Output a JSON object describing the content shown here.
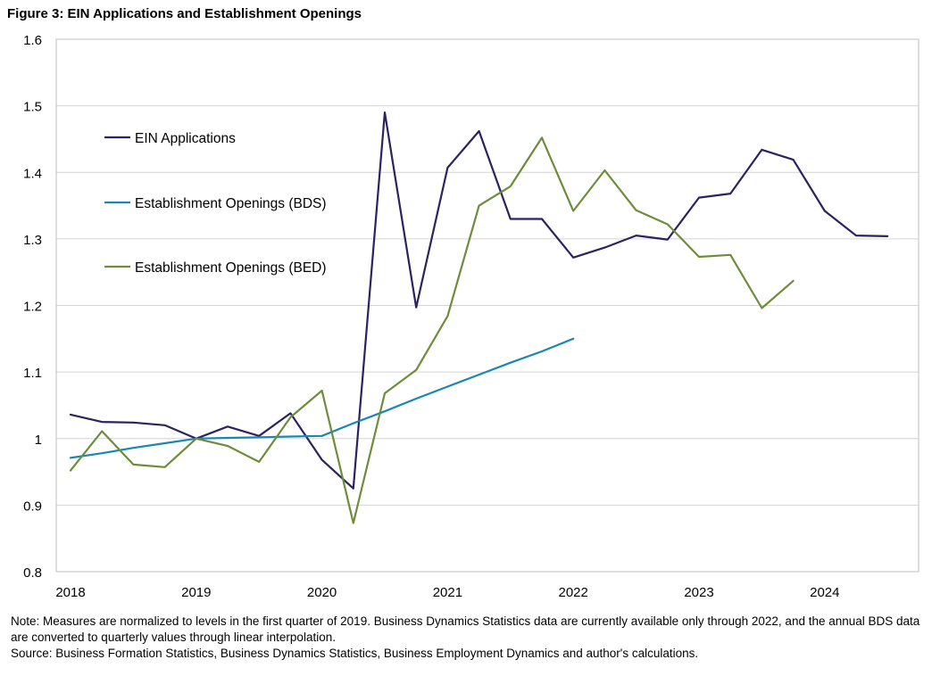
{
  "chart_data": {
    "type": "line",
    "title": "Figure 3: EIN Applications and Establishment Openings",
    "xlabel": "",
    "ylabel": "",
    "ylim": [
      0.8,
      1.6
    ],
    "yticks": [
      "0.8",
      "0.9",
      "1",
      "1.1",
      "1.2",
      "1.3",
      "1.4",
      "1.5",
      "1.6"
    ],
    "ytick_values": [
      0.8,
      0.9,
      1.0,
      1.1,
      1.2,
      1.3,
      1.4,
      1.5,
      1.6
    ],
    "x": [
      "2018Q1",
      "2018Q2",
      "2018Q3",
      "2018Q4",
      "2019Q1",
      "2019Q2",
      "2019Q3",
      "2019Q4",
      "2020Q1",
      "2020Q2",
      "2020Q3",
      "2020Q4",
      "2021Q1",
      "2021Q2",
      "2021Q3",
      "2021Q4",
      "2022Q1",
      "2022Q2",
      "2022Q3",
      "2022Q4",
      "2023Q1",
      "2023Q2",
      "2023Q3",
      "2023Q4",
      "2024Q1",
      "2024Q2",
      "2024Q3"
    ],
    "xtick_labels": [
      "2018",
      "2019",
      "2020",
      "2021",
      "2022",
      "2023",
      "2024"
    ],
    "xtick_index": [
      0,
      4,
      8,
      12,
      16,
      20,
      24
    ],
    "grid": true,
    "legend_position": "upper-left",
    "series": [
      {
        "name": "EIN Applications",
        "color": "#2b2262",
        "values": [
          1.036,
          1.025,
          1.024,
          1.02,
          1.0,
          1.018,
          1.004,
          1.038,
          0.968,
          0.925,
          1.49,
          1.197,
          1.407,
          1.462,
          1.33,
          1.33,
          1.272,
          1.287,
          1.305,
          1.299,
          1.362,
          1.368,
          1.434,
          1.419,
          1.342,
          1.305,
          1.304
        ]
      },
      {
        "name": "Establishment Openings (BDS)",
        "color": "#1a86b5",
        "values": [
          0.971,
          0.978,
          0.986,
          0.993,
          1.0,
          1.001,
          1.002,
          1.003,
          1.004,
          1.023,
          1.041,
          1.06,
          1.078,
          1.096,
          1.114,
          1.131,
          1.15,
          null,
          null,
          null,
          null,
          null,
          null,
          null,
          null,
          null,
          null
        ]
      },
      {
        "name": "Establishment Openings (BED)",
        "color": "#6f8c3a",
        "values": [
          0.952,
          1.011,
          0.961,
          0.957,
          1.0,
          0.989,
          0.965,
          1.032,
          1.072,
          0.873,
          1.068,
          1.103,
          1.184,
          1.35,
          1.379,
          1.452,
          1.342,
          1.403,
          1.343,
          1.322,
          1.273,
          1.276,
          1.196,
          1.237,
          null,
          null,
          null
        ]
      }
    ]
  },
  "notes": {
    "note": "Note: Measures are normalized to levels in the first quarter of 2019. Business Dynamics Statistics data are currently available only through 2022, and the annual BDS data are converted to quarterly values through linear interpolation.",
    "source": "Source: Business Formation Statistics, Business Dynamics Statistics, Business Employment Dynamics and author's calculations."
  }
}
